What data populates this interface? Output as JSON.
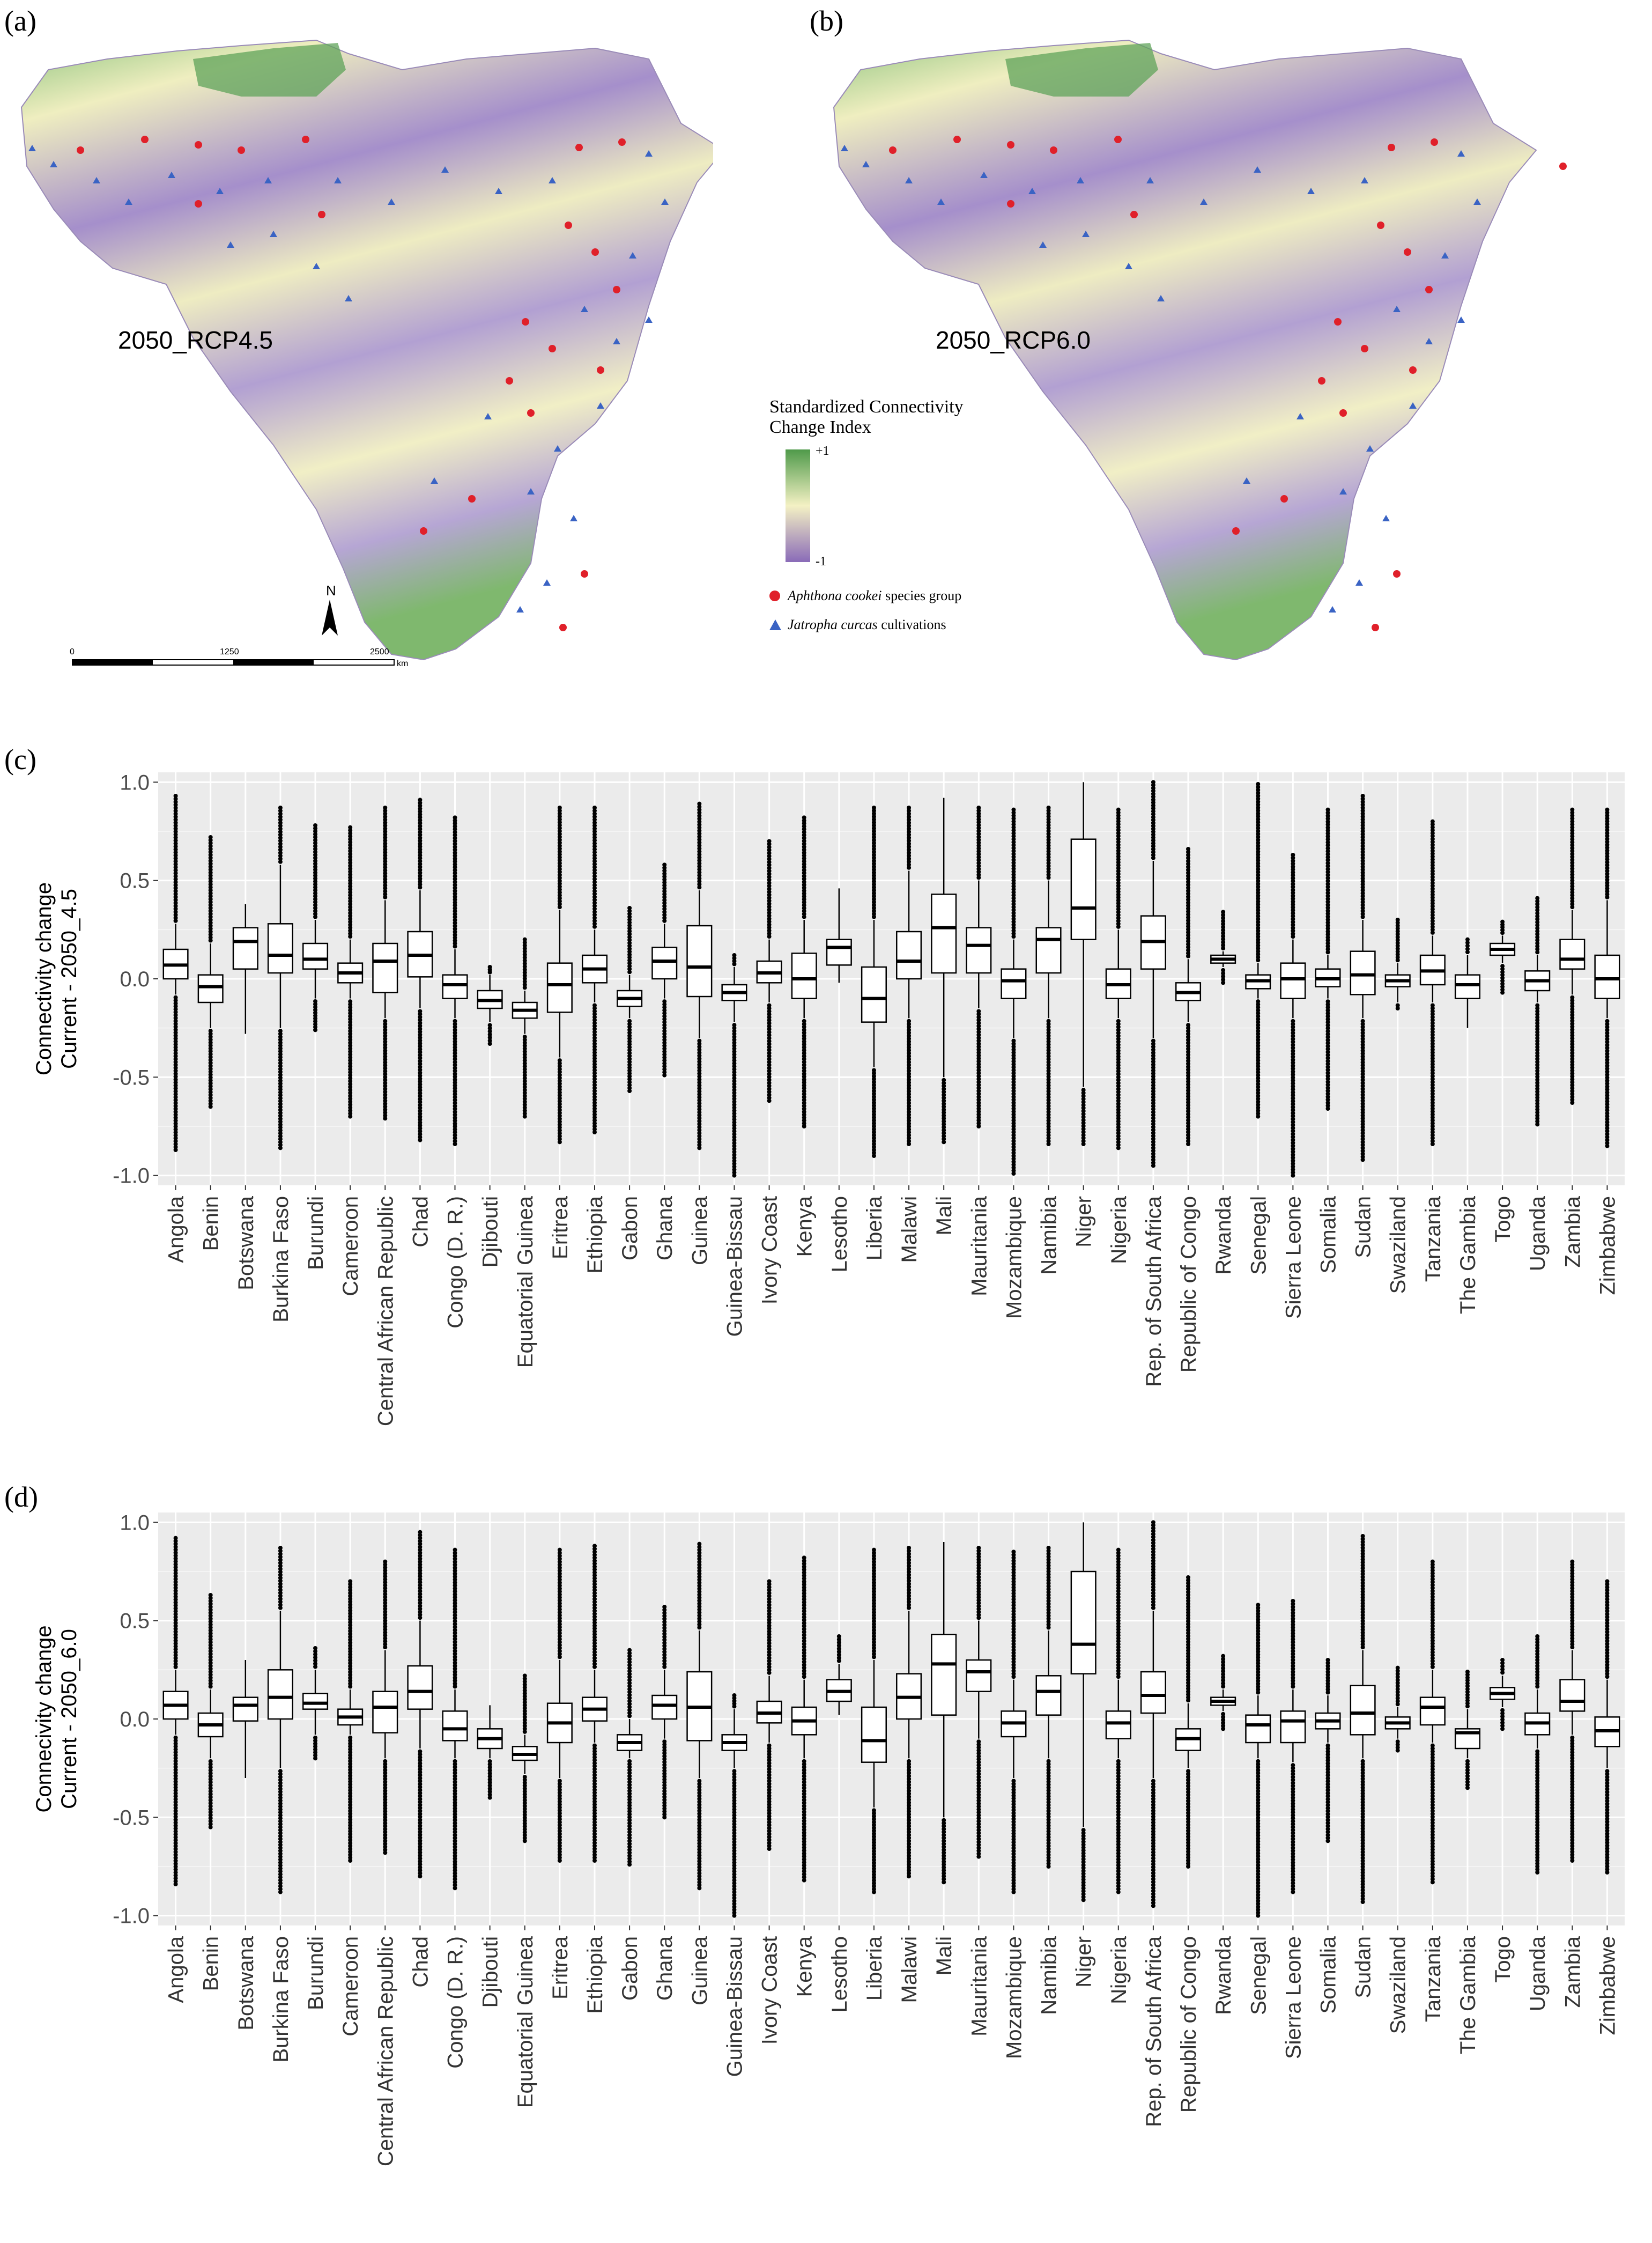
{
  "panel_labels": {
    "a": "(a)",
    "b": "(b)",
    "c": "(c)",
    "d": "(d)"
  },
  "maps": {
    "left_label": "2050_RCP4.5",
    "right_label": "2050_RCP6.0",
    "legend_title_line1": "Standardized Connectivity",
    "legend_title_line2": "Change Index",
    "legend_max": "+1",
    "legend_min": "-1",
    "legend_species_italic": "Aphthona cookei",
    "legend_species_rest": " species group",
    "legend_cult_italic": "Jatropha curcas",
    "legend_cult_rest": " cultivations",
    "north": "N",
    "scale_ticks": [
      "0",
      "1250",
      "2500"
    ],
    "scale_unit": "km",
    "colors": {
      "green": "#4f9a4a",
      "light": "#f4f1c4",
      "purple": "#8a6bb8",
      "point_red": "#e0202a",
      "point_blue": "#3a63c4"
    }
  },
  "chart_data": [
    {
      "type": "boxplot",
      "ylabel_line1": "Connectivity change",
      "ylabel_line2": "Current - 2050_4.5",
      "ylim": [
        -1.05,
        1.05
      ],
      "yticks": [
        -1.0,
        -0.5,
        0.0,
        0.5,
        1.0
      ],
      "ytick_labels": [
        "-1.0",
        "-0.5",
        "0.0",
        "0.5",
        "1.0"
      ],
      "categories": [
        "Angola",
        "Benin",
        "Botswana",
        "Burkina Faso",
        "Burundi",
        "Cameroon",
        "Central African Republic",
        "Chad",
        "Congo (D. R.)",
        "Djibouti",
        "Equatorial Guinea",
        "Eritrea",
        "Ethiopia",
        "Gabon",
        "Ghana",
        "Guinea",
        "Guinea-Bissau",
        "Ivory Coast",
        "Kenya",
        "Lesotho",
        "Liberia",
        "Malawi",
        "Mali",
        "Mauritania",
        "Mozambique",
        "Namibia",
        "Niger",
        "Nigeria",
        "Rep. of South Africa",
        "Republic of Congo",
        "Rwanda",
        "Senegal",
        "Sierra Leone",
        "Somalia",
        "Sudan",
        "Swaziland",
        "Tanzania",
        "The Gambia",
        "Togo",
        "Uganda",
        "Zambia",
        "Zimbabwe"
      ],
      "boxes": [
        {
          "wl": -0.08,
          "q1": 0.0,
          "med": 0.07,
          "q3": 0.15,
          "wh": 0.28,
          "omin": -0.87,
          "omax": 0.93
        },
        {
          "wl": -0.25,
          "q1": -0.12,
          "med": -0.04,
          "q3": 0.02,
          "wh": 0.18,
          "omin": -0.65,
          "omax": 0.72
        },
        {
          "wl": -0.28,
          "q1": 0.05,
          "med": 0.19,
          "q3": 0.26,
          "wh": 0.38,
          "omin": -0.28,
          "omax": 0.38
        },
        {
          "wl": -0.25,
          "q1": 0.03,
          "med": 0.12,
          "q3": 0.28,
          "wh": 0.58,
          "omin": -0.86,
          "omax": 0.87
        },
        {
          "wl": -0.1,
          "q1": 0.05,
          "med": 0.1,
          "q3": 0.18,
          "wh": 0.3,
          "omin": -0.26,
          "omax": 0.78
        },
        {
          "wl": -0.1,
          "q1": -0.02,
          "med": 0.03,
          "q3": 0.08,
          "wh": 0.2,
          "omin": -0.7,
          "omax": 0.77
        },
        {
          "wl": -0.2,
          "q1": -0.07,
          "med": 0.09,
          "q3": 0.18,
          "wh": 0.4,
          "omin": -0.71,
          "omax": 0.87
        },
        {
          "wl": -0.15,
          "q1": 0.01,
          "med": 0.12,
          "q3": 0.24,
          "wh": 0.45,
          "omin": -0.82,
          "omax": 0.91
        },
        {
          "wl": -0.2,
          "q1": -0.1,
          "med": -0.03,
          "q3": 0.02,
          "wh": 0.15,
          "omin": -0.84,
          "omax": 0.82
        },
        {
          "wl": -0.22,
          "q1": -0.15,
          "med": -0.11,
          "q3": -0.06,
          "wh": 0.02,
          "omin": -0.33,
          "omax": 0.06
        },
        {
          "wl": -0.28,
          "q1": -0.2,
          "med": -0.16,
          "q3": -0.12,
          "wh": -0.06,
          "omin": -0.7,
          "omax": 0.2
        },
        {
          "wl": -0.4,
          "q1": -0.17,
          "med": -0.03,
          "q3": 0.08,
          "wh": 0.35,
          "omin": -0.83,
          "omax": 0.87
        },
        {
          "wl": -0.12,
          "q1": -0.02,
          "med": 0.05,
          "q3": 0.12,
          "wh": 0.25,
          "omin": -0.78,
          "omax": 0.87
        },
        {
          "wl": -0.2,
          "q1": -0.14,
          "med": -0.1,
          "q3": -0.06,
          "wh": 0.02,
          "omin": -0.57,
          "omax": 0.36
        },
        {
          "wl": -0.1,
          "q1": 0.0,
          "med": 0.09,
          "q3": 0.16,
          "wh": 0.28,
          "omin": -0.49,
          "omax": 0.58
        },
        {
          "wl": -0.3,
          "q1": -0.09,
          "med": 0.06,
          "q3": 0.27,
          "wh": 0.45,
          "omin": -0.86,
          "omax": 0.89
        },
        {
          "wl": -0.22,
          "q1": -0.11,
          "med": -0.07,
          "q3": -0.03,
          "wh": 0.06,
          "omin": -1.0,
          "omax": 0.12
        },
        {
          "wl": -0.12,
          "q1": -0.02,
          "med": 0.03,
          "q3": 0.09,
          "wh": 0.2,
          "omin": -0.62,
          "omax": 0.7
        },
        {
          "wl": -0.2,
          "q1": -0.1,
          "med": 0.0,
          "q3": 0.13,
          "wh": 0.3,
          "omin": -0.75,
          "omax": 0.82
        },
        {
          "wl": -0.02,
          "q1": 0.07,
          "med": 0.16,
          "q3": 0.2,
          "wh": 0.46,
          "omin": -0.02,
          "omax": 0.46
        },
        {
          "wl": -0.45,
          "q1": -0.22,
          "med": -0.1,
          "q3": 0.06,
          "wh": 0.3,
          "omin": -0.9,
          "omax": 0.87
        },
        {
          "wl": -0.2,
          "q1": 0.0,
          "med": 0.09,
          "q3": 0.24,
          "wh": 0.55,
          "omin": -0.84,
          "omax": 0.87
        },
        {
          "wl": -0.5,
          "q1": 0.03,
          "med": 0.26,
          "q3": 0.43,
          "wh": 0.92,
          "omin": -0.83,
          "omax": 0.92
        },
        {
          "wl": -0.15,
          "q1": 0.03,
          "med": 0.17,
          "q3": 0.26,
          "wh": 0.5,
          "omin": -0.75,
          "omax": 0.87
        },
        {
          "wl": -0.3,
          "q1": -0.1,
          "med": -0.01,
          "q3": 0.05,
          "wh": 0.2,
          "omin": -0.99,
          "omax": 0.86
        },
        {
          "wl": -0.2,
          "q1": 0.03,
          "med": 0.2,
          "q3": 0.26,
          "wh": 0.5,
          "omin": -0.84,
          "omax": 0.87
        },
        {
          "wl": -0.55,
          "q1": 0.2,
          "med": 0.36,
          "q3": 0.71,
          "wh": 1.0,
          "omin": -0.84,
          "omax": 1.0
        },
        {
          "wl": -0.2,
          "q1": -0.1,
          "med": -0.03,
          "q3": 0.05,
          "wh": 0.25,
          "omin": -0.86,
          "omax": 0.86
        },
        {
          "wl": -0.3,
          "q1": 0.05,
          "med": 0.19,
          "q3": 0.32,
          "wh": 0.6,
          "omin": -0.95,
          "omax": 1.0
        },
        {
          "wl": -0.22,
          "q1": -0.11,
          "med": -0.07,
          "q3": -0.02,
          "wh": 0.1,
          "omin": -0.84,
          "omax": 0.66
        },
        {
          "wl": 0.06,
          "q1": 0.08,
          "med": 0.1,
          "q3": 0.12,
          "wh": 0.14,
          "omin": -0.02,
          "omax": 0.34
        },
        {
          "wl": -0.1,
          "q1": -0.05,
          "med": -0.01,
          "q3": 0.02,
          "wh": 0.08,
          "omin": -0.7,
          "omax": 0.99
        },
        {
          "wl": -0.2,
          "q1": -0.1,
          "med": 0.0,
          "q3": 0.08,
          "wh": 0.2,
          "omin": -1.0,
          "omax": 0.63
        },
        {
          "wl": -0.1,
          "q1": -0.04,
          "med": 0.0,
          "q3": 0.05,
          "wh": 0.12,
          "omin": -0.66,
          "omax": 0.86
        },
        {
          "wl": -0.2,
          "q1": -0.08,
          "med": 0.02,
          "q3": 0.14,
          "wh": 0.3,
          "omin": -0.92,
          "omax": 0.93
        },
        {
          "wl": -0.12,
          "q1": -0.04,
          "med": -0.01,
          "q3": 0.02,
          "wh": 0.08,
          "omin": -0.15,
          "omax": 0.3
        },
        {
          "wl": -0.12,
          "q1": -0.03,
          "med": 0.04,
          "q3": 0.12,
          "wh": 0.22,
          "omin": -0.84,
          "omax": 0.8
        },
        {
          "wl": -0.25,
          "q1": -0.1,
          "med": -0.03,
          "q3": 0.02,
          "wh": 0.12,
          "omin": -0.25,
          "omax": 0.2
        },
        {
          "wl": 0.08,
          "q1": 0.12,
          "med": 0.15,
          "q3": 0.18,
          "wh": 0.22,
          "omin": -0.07,
          "omax": 0.29
        },
        {
          "wl": -0.12,
          "q1": -0.06,
          "med": -0.01,
          "q3": 0.04,
          "wh": 0.12,
          "omin": -0.74,
          "omax": 0.41
        },
        {
          "wl": -0.08,
          "q1": 0.05,
          "med": 0.1,
          "q3": 0.2,
          "wh": 0.35,
          "omin": -0.63,
          "omax": 0.86
        },
        {
          "wl": -0.2,
          "q1": -0.1,
          "med": 0.0,
          "q3": 0.12,
          "wh": 0.4,
          "omin": -0.85,
          "omax": 0.86
        }
      ]
    },
    {
      "type": "boxplot",
      "ylabel_line1": "Connecivity change",
      "ylabel_line2": "Current - 2050_6.0",
      "ylim": [
        -1.05,
        1.05
      ],
      "yticks": [
        -1.0,
        -0.5,
        0.0,
        0.5,
        1.0
      ],
      "ytick_labels": [
        "-1.0",
        "-0.5",
        "0.0",
        "0.5",
        "1.0"
      ],
      "categories": [
        "Angola",
        "Benin",
        "Botswana",
        "Burkina Faso",
        "Burundi",
        "Cameroon",
        "Central African Republic",
        "Chad",
        "Congo (D. R.)",
        "Djibouti",
        "Equatorial Guinea",
        "Eritrea",
        "Ethiopia",
        "Gabon",
        "Ghana",
        "Guinea",
        "Guinea-Bissau",
        "Ivory Coast",
        "Kenya",
        "Lesotho",
        "Liberia",
        "Malawi",
        "Mali",
        "Mauritania",
        "Mozambique",
        "Namibia",
        "Niger",
        "Nigeria",
        "Rep. of South Africa",
        "Republic of Congo",
        "Rwanda",
        "Senegal",
        "Sierra Leone",
        "Somalia",
        "Sudan",
        "Swaziland",
        "Tanzania",
        "The Gambia",
        "Togo",
        "Uganda",
        "Zambia",
        "Zimbabwe"
      ],
      "boxes": [
        {
          "wl": -0.08,
          "q1": 0.0,
          "med": 0.07,
          "q3": 0.14,
          "wh": 0.25,
          "omin": -0.84,
          "omax": 0.92
        },
        {
          "wl": -0.2,
          "q1": -0.09,
          "med": -0.03,
          "q3": 0.03,
          "wh": 0.15,
          "omin": -0.55,
          "omax": 0.63
        },
        {
          "wl": -0.3,
          "q1": -0.01,
          "med": 0.07,
          "q3": 0.11,
          "wh": 0.3,
          "omin": -0.3,
          "omax": 0.3
        },
        {
          "wl": -0.25,
          "q1": 0.0,
          "med": 0.11,
          "q3": 0.25,
          "wh": 0.55,
          "omin": -0.88,
          "omax": 0.87
        },
        {
          "wl": -0.08,
          "q1": 0.05,
          "med": 0.08,
          "q3": 0.13,
          "wh": 0.25,
          "omin": -0.2,
          "omax": 0.36
        },
        {
          "wl": -0.08,
          "q1": -0.03,
          "med": 0.01,
          "q3": 0.05,
          "wh": 0.15,
          "omin": -0.72,
          "omax": 0.7
        },
        {
          "wl": -0.2,
          "q1": -0.07,
          "med": 0.06,
          "q3": 0.14,
          "wh": 0.35,
          "omin": -0.68,
          "omax": 0.8
        },
        {
          "wl": -0.15,
          "q1": 0.05,
          "med": 0.14,
          "q3": 0.27,
          "wh": 0.5,
          "omin": -0.8,
          "omax": 0.95
        },
        {
          "wl": -0.2,
          "q1": -0.11,
          "med": -0.05,
          "q3": 0.04,
          "wh": 0.15,
          "omin": -0.86,
          "omax": 0.86
        },
        {
          "wl": -0.2,
          "q1": -0.15,
          "med": -0.1,
          "q3": -0.05,
          "wh": 0.07,
          "omin": -0.4,
          "omax": 0.07
        },
        {
          "wl": -0.28,
          "q1": -0.21,
          "med": -0.18,
          "q3": -0.14,
          "wh": -0.08,
          "omin": -0.62,
          "omax": 0.22
        },
        {
          "wl": -0.3,
          "q1": -0.12,
          "med": -0.02,
          "q3": 0.08,
          "wh": 0.3,
          "omin": -0.72,
          "omax": 0.86
        },
        {
          "wl": -0.12,
          "q1": -0.01,
          "med": 0.05,
          "q3": 0.11,
          "wh": 0.25,
          "omin": -0.72,
          "omax": 0.88
        },
        {
          "wl": -0.2,
          "q1": -0.16,
          "med": -0.12,
          "q3": -0.08,
          "wh": 0.0,
          "omin": -0.74,
          "omax": 0.35
        },
        {
          "wl": -0.1,
          "q1": 0.0,
          "med": 0.07,
          "q3": 0.12,
          "wh": 0.25,
          "omin": -0.5,
          "omax": 0.57
        },
        {
          "wl": -0.3,
          "q1": -0.11,
          "med": 0.06,
          "q3": 0.24,
          "wh": 0.45,
          "omin": -0.86,
          "omax": 0.89
        },
        {
          "wl": -0.25,
          "q1": -0.16,
          "med": -0.12,
          "q3": -0.08,
          "wh": 0.05,
          "omin": -1.0,
          "omax": 0.12
        },
        {
          "wl": -0.12,
          "q1": -0.02,
          "med": 0.03,
          "q3": 0.09,
          "wh": 0.22,
          "omin": -0.66,
          "omax": 0.7
        },
        {
          "wl": -0.2,
          "q1": -0.08,
          "med": -0.01,
          "q3": 0.06,
          "wh": 0.2,
          "omin": -0.82,
          "omax": 0.82
        },
        {
          "wl": 0.02,
          "q1": 0.09,
          "med": 0.14,
          "q3": 0.2,
          "wh": 0.28,
          "omin": 0.02,
          "omax": 0.42
        },
        {
          "wl": -0.45,
          "q1": -0.22,
          "med": -0.11,
          "q3": 0.06,
          "wh": 0.3,
          "omin": -0.88,
          "omax": 0.86
        },
        {
          "wl": -0.2,
          "q1": 0.0,
          "med": 0.11,
          "q3": 0.23,
          "wh": 0.55,
          "omin": -0.8,
          "omax": 0.87
        },
        {
          "wl": -0.5,
          "q1": 0.02,
          "med": 0.28,
          "q3": 0.43,
          "wh": 0.9,
          "omin": -0.83,
          "omax": 0.9
        },
        {
          "wl": -0.1,
          "q1": 0.14,
          "med": 0.24,
          "q3": 0.3,
          "wh": 0.5,
          "omin": -0.7,
          "omax": 0.87
        },
        {
          "wl": -0.3,
          "q1": -0.09,
          "med": -0.02,
          "q3": 0.04,
          "wh": 0.2,
          "omin": -0.88,
          "omax": 0.85
        },
        {
          "wl": -0.2,
          "q1": 0.02,
          "med": 0.14,
          "q3": 0.22,
          "wh": 0.45,
          "omin": -0.75,
          "omax": 0.87
        },
        {
          "wl": -0.55,
          "q1": 0.23,
          "med": 0.38,
          "q3": 0.75,
          "wh": 1.0,
          "omin": -0.92,
          "omax": 1.0
        },
        {
          "wl": -0.2,
          "q1": -0.1,
          "med": -0.02,
          "q3": 0.04,
          "wh": 0.2,
          "omin": -0.88,
          "omax": 0.86
        },
        {
          "wl": -0.3,
          "q1": 0.03,
          "med": 0.12,
          "q3": 0.24,
          "wh": 0.55,
          "omin": -0.95,
          "omax": 1.0
        },
        {
          "wl": -0.25,
          "q1": -0.16,
          "med": -0.1,
          "q3": -0.05,
          "wh": 0.08,
          "omin": -0.75,
          "omax": 0.72
        },
        {
          "wl": 0.04,
          "q1": 0.07,
          "med": 0.09,
          "q3": 0.11,
          "wh": 0.15,
          "omin": -0.05,
          "omax": 0.32
        },
        {
          "wl": -0.2,
          "q1": -0.12,
          "med": -0.03,
          "q3": 0.02,
          "wh": 0.12,
          "omin": -1.0,
          "omax": 0.58
        },
        {
          "wl": -0.22,
          "q1": -0.12,
          "med": -0.01,
          "q3": 0.04,
          "wh": 0.15,
          "omin": -0.88,
          "omax": 0.6
        },
        {
          "wl": -0.12,
          "q1": -0.05,
          "med": -0.01,
          "q3": 0.03,
          "wh": 0.12,
          "omin": -0.62,
          "omax": 0.3
        },
        {
          "wl": -0.2,
          "q1": -0.08,
          "med": 0.03,
          "q3": 0.17,
          "wh": 0.35,
          "omin": -0.93,
          "omax": 0.93
        },
        {
          "wl": -0.1,
          "q1": -0.05,
          "med": -0.02,
          "q3": 0.01,
          "wh": 0.06,
          "omin": -0.16,
          "omax": 0.26
        },
        {
          "wl": -0.12,
          "q1": -0.03,
          "med": 0.06,
          "q3": 0.11,
          "wh": 0.25,
          "omin": -0.83,
          "omax": 0.8
        },
        {
          "wl": -0.2,
          "q1": -0.15,
          "med": -0.07,
          "q3": -0.05,
          "wh": 0.05,
          "omin": -0.35,
          "omax": 0.24
        },
        {
          "wl": 0.06,
          "q1": 0.1,
          "med": 0.13,
          "q3": 0.16,
          "wh": 0.22,
          "omin": -0.05,
          "omax": 0.3
        },
        {
          "wl": -0.15,
          "q1": -0.08,
          "med": -0.02,
          "q3": 0.03,
          "wh": 0.15,
          "omin": -0.78,
          "omax": 0.42
        },
        {
          "wl": -0.08,
          "q1": 0.04,
          "med": 0.09,
          "q3": 0.2,
          "wh": 0.35,
          "omin": -0.72,
          "omax": 0.8
        },
        {
          "wl": -0.25,
          "q1": -0.14,
          "med": -0.06,
          "q3": 0.01,
          "wh": 0.2,
          "omin": -0.78,
          "omax": 0.7
        }
      ]
    }
  ]
}
